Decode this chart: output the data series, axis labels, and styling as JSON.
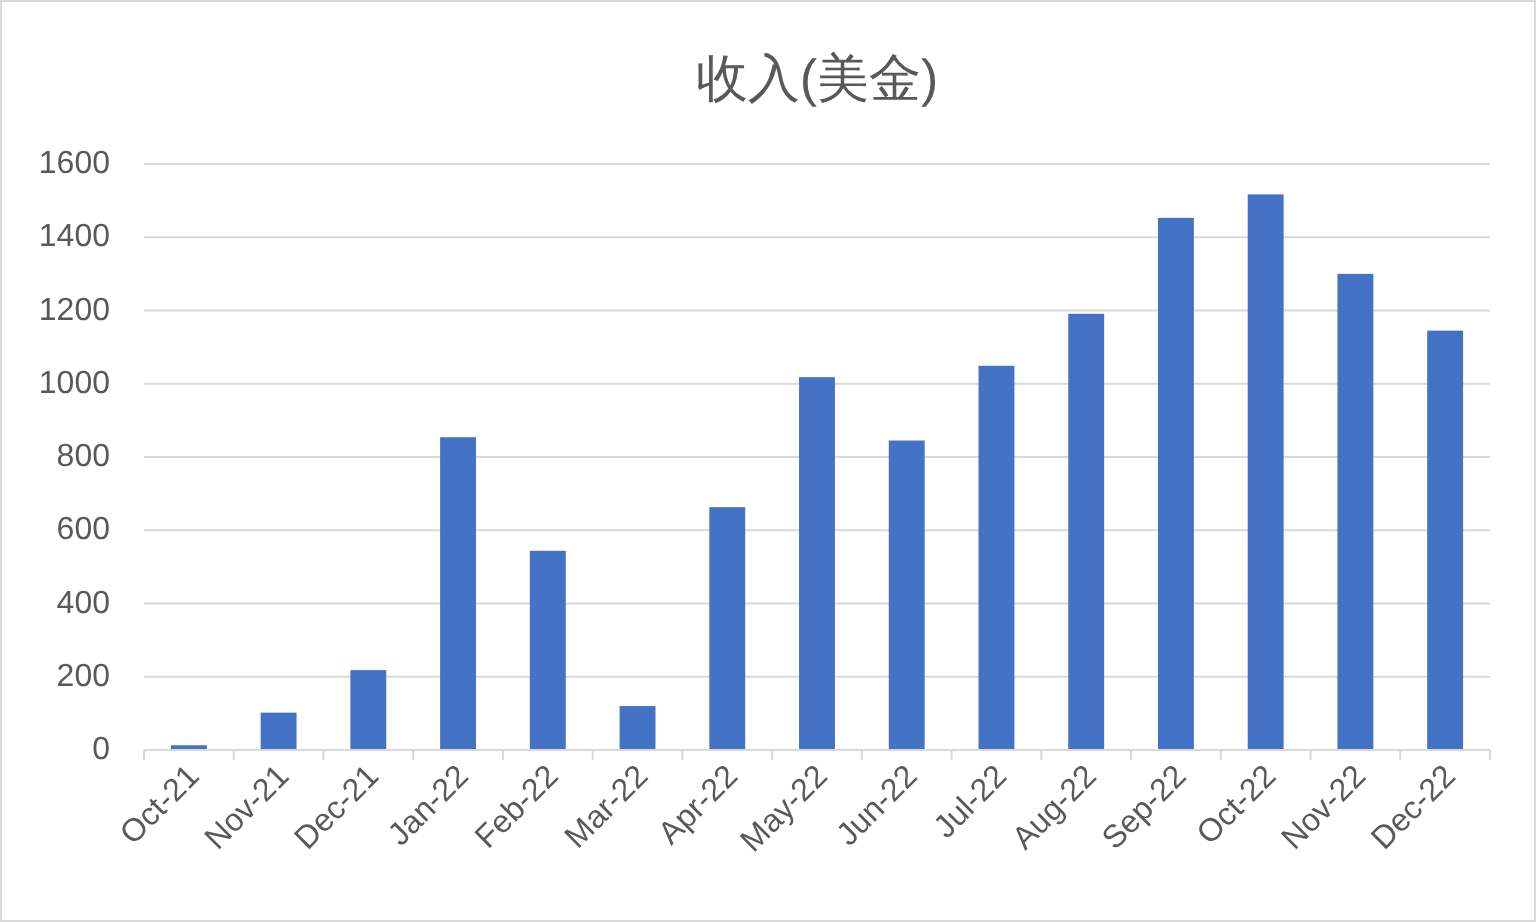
{
  "chart_data": {
    "type": "bar",
    "title": "收入(美金)",
    "categories": [
      "Oct-21",
      "Nov-21",
      "Dec-21",
      "Jan-22",
      "Feb-22",
      "Mar-22",
      "Apr-22",
      "May-22",
      "Jun-22",
      "Jul-22",
      "Aug-22",
      "Sep-22",
      "Oct-22",
      "Nov-22",
      "Dec-22"
    ],
    "values": [
      13,
      102,
      218,
      854,
      544,
      120,
      663,
      1018,
      845,
      1049,
      1191,
      1453,
      1517,
      1300,
      1145
    ],
    "color": "#4472c4",
    "ylim": [
      0,
      1600
    ],
    "yticks": [
      0,
      200,
      400,
      600,
      800,
      1000,
      1200,
      1400,
      1600
    ],
    "grid": "y"
  }
}
